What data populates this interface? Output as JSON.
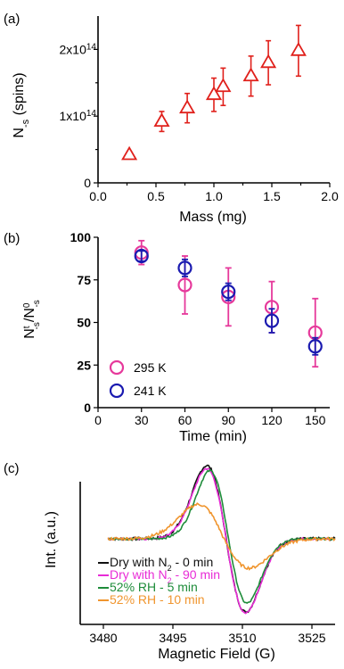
{
  "chart_data": [
    {
      "panel_label": "(a)",
      "type": "scatter",
      "xlabel": "Mass (mg)",
      "ylabel_main": "N",
      "ylabel_sub": "-s",
      "ylabel_rest": " (spins)",
      "xlim": [
        0.0,
        2.0
      ],
      "ylim": [
        0,
        250000000000000.0
      ],
      "xticks": [
        "0.0",
        "0.5",
        "1.0",
        "1.5",
        "2.0"
      ],
      "yticks": [
        {
          "value": 0,
          "base": "0",
          "exp": ""
        },
        {
          "value": 100000000000000.0,
          "base": "1x10",
          "exp": "14"
        },
        {
          "value": 200000000000000.0,
          "base": "2x10",
          "exp": "14"
        }
      ],
      "series": [
        {
          "marker": "triangle",
          "color": "#e0201b",
          "points": [
            {
              "x": 0.27,
              "y": 42000000000000.0,
              "err": 5000000000000.0
            },
            {
              "x": 0.55,
              "y": 92000000000000.0,
              "err": 15000000000000.0
            },
            {
              "x": 0.77,
              "y": 112000000000000.0,
              "err": 22000000000000.0
            },
            {
              "x": 1.0,
              "y": 132000000000000.0,
              "err": 25000000000000.0
            },
            {
              "x": 1.08,
              "y": 144000000000000.0,
              "err": 28000000000000.0
            },
            {
              "x": 1.32,
              "y": 160000000000000.0,
              "err": 30000000000000.0
            },
            {
              "x": 1.47,
              "y": 180000000000000.0,
              "err": 33000000000000.0
            },
            {
              "x": 1.73,
              "y": 198000000000000.0,
              "err": 38000000000000.0
            }
          ]
        }
      ]
    },
    {
      "panel_label": "(b)",
      "type": "scatter",
      "xlabel": "Time (min)",
      "ylabel": "N^t_-s/N^0_-s",
      "xlim": [
        0,
        160
      ],
      "ylim": [
        0,
        100
      ],
      "xticks": [
        0,
        30,
        60,
        90,
        120,
        150
      ],
      "yticks": [
        0,
        25,
        50,
        75,
        100
      ],
      "series": [
        {
          "name": "295 K",
          "color": "#e6399b",
          "points": [
            {
              "x": 30,
              "y": 91,
              "err": 7
            },
            {
              "x": 60,
              "y": 72,
              "err": 17
            },
            {
              "x": 90,
              "y": 65,
              "err": 17
            },
            {
              "x": 120,
              "y": 59,
              "err": 15
            },
            {
              "x": 150,
              "y": 44,
              "err": 20
            }
          ]
        },
        {
          "name": "241 K",
          "color": "#1a1ab0",
          "points": [
            {
              "x": 30,
              "y": 89,
              "err": 3
            },
            {
              "x": 60,
              "y": 82,
              "err": 5
            },
            {
              "x": 90,
              "y": 68,
              "err": 5
            },
            {
              "x": 120,
              "y": 51,
              "err": 7
            },
            {
              "x": 150,
              "y": 36,
              "err": 5
            }
          ]
        }
      ]
    },
    {
      "panel_label": "(c)",
      "type": "line",
      "xlabel": "Magnetic Field (G)",
      "ylabel": "Int. (a.u.)",
      "xlim": [
        3475,
        3530
      ],
      "xticks": [
        3480,
        3495,
        3510,
        3525
      ],
      "series": [
        {
          "name": "Dry with N",
          "name_sub": "2",
          "name_rest": " - 0 min",
          "color": "#111111",
          "amp_pos": 1.0,
          "amp_neg": 1.0,
          "center": 3506.5,
          "width": 4.2,
          "noise": 0.02
        },
        {
          "name": "Dry with N",
          "name_sub": "2",
          "name_rest": " - 90 min",
          "color": "#e82bd6",
          "amp_pos": 0.96,
          "amp_neg": 1.01,
          "center": 3506.5,
          "width": 4.2,
          "noise": 0.015
        },
        {
          "name": "52% RH - 5 min",
          "name_sub": "",
          "name_rest": "",
          "color": "#1e8c3a",
          "amp_pos": 0.93,
          "amp_neg": 0.88,
          "center": 3507.0,
          "width": 4.0,
          "noise": 0.015
        },
        {
          "name": "52% RH - 10 min",
          "name_sub": "",
          "name_rest": "",
          "color": "#f0952e",
          "amp_pos": 0.47,
          "amp_neg": 0.4,
          "center": 3506.0,
          "width": 5.5,
          "noise": 0.02
        }
      ]
    }
  ]
}
